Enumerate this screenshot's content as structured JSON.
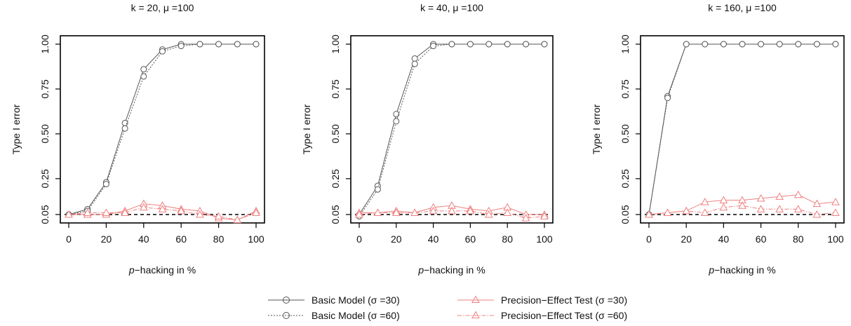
{
  "chart_data": [
    {
      "type": "line",
      "title": "k = 20, μ =100",
      "xlabel": "p−hacking in %",
      "ylabel": "Type I error",
      "x": [
        0,
        10,
        20,
        30,
        40,
        50,
        60,
        70,
        80,
        90,
        100
      ],
      "xticks": [
        "0",
        "20",
        "40",
        "60",
        "80",
        "100"
      ],
      "yticks": [
        "0.05",
        "0.25",
        "0.50",
        "0.75",
        "1.00"
      ],
      "xlim": [
        0,
        100
      ],
      "ylim": [
        0.05,
        1.0
      ],
      "reference_line": 0.05,
      "series": [
        {
          "name": "Basic Model (σ =30)",
          "values": [
            0.05,
            0.08,
            0.23,
            0.56,
            0.86,
            0.97,
            1.0,
            1.0,
            1.0,
            1.0,
            1.0
          ]
        },
        {
          "name": "Basic Model (σ =60)",
          "values": [
            0.05,
            0.07,
            0.22,
            0.53,
            0.82,
            0.96,
            0.99,
            1.0,
            1.0,
            1.0,
            1.0
          ]
        },
        {
          "name": "Precision−Effect Test (σ =30)",
          "values": [
            0.05,
            0.05,
            0.05,
            0.07,
            0.11,
            0.1,
            0.08,
            0.07,
            0.03,
            0.02,
            0.07
          ]
        },
        {
          "name": "Precision−Effect Test (σ =60)",
          "values": [
            0.05,
            0.06,
            0.06,
            0.06,
            0.09,
            0.08,
            0.07,
            0.05,
            0.04,
            0.02,
            0.06
          ]
        }
      ]
    },
    {
      "type": "line",
      "title": "k = 40, μ =100",
      "xlabel": "p−hacking in %",
      "ylabel": "Type I error",
      "x": [
        0,
        10,
        20,
        30,
        40,
        50,
        60,
        70,
        80,
        90,
        100
      ],
      "xticks": [
        "0",
        "20",
        "40",
        "60",
        "80",
        "100"
      ],
      "yticks": [
        "0.05",
        "0.25",
        "0.50",
        "0.75",
        "1.00"
      ],
      "xlim": [
        0,
        100
      ],
      "ylim": [
        0.05,
        1.0
      ],
      "reference_line": 0.05,
      "series": [
        {
          "name": "Basic Model (σ =30)",
          "values": [
            0.05,
            0.21,
            0.61,
            0.92,
            1.0,
            1.0,
            1.0,
            1.0,
            1.0,
            1.0,
            1.0
          ]
        },
        {
          "name": "Basic Model (σ =60)",
          "values": [
            0.04,
            0.19,
            0.57,
            0.89,
            0.99,
            1.0,
            1.0,
            1.0,
            1.0,
            1.0,
            1.0
          ]
        },
        {
          "name": "Precision−Effect Test (σ =30)",
          "values": [
            0.06,
            0.06,
            0.07,
            0.06,
            0.09,
            0.1,
            0.08,
            0.07,
            0.09,
            0.05,
            0.05
          ]
        },
        {
          "name": "Precision−Effect Test (σ =60)",
          "values": [
            0.05,
            0.06,
            0.06,
            0.06,
            0.07,
            0.07,
            0.07,
            0.05,
            0.06,
            0.03,
            0.04
          ]
        }
      ]
    },
    {
      "type": "line",
      "title": "k = 160, μ =100",
      "xlabel": "p−hacking in %",
      "ylabel": "Type I error",
      "x": [
        0,
        10,
        20,
        30,
        40,
        50,
        60,
        70,
        80,
        90,
        100
      ],
      "xticks": [
        "0",
        "20",
        "40",
        "60",
        "80",
        "100"
      ],
      "yticks": [
        "0.05",
        "0.25",
        "0.50",
        "0.75",
        "1.00"
      ],
      "xlim": [
        0,
        100
      ],
      "ylim": [
        0.05,
        1.0
      ],
      "reference_line": 0.05,
      "series": [
        {
          "name": "Basic Model (σ =30)",
          "values": [
            0.05,
            0.71,
            1.0,
            1.0,
            1.0,
            1.0,
            1.0,
            1.0,
            1.0,
            1.0,
            1.0
          ]
        },
        {
          "name": "Basic Model (σ =60)",
          "values": [
            0.05,
            0.7,
            1.0,
            1.0,
            1.0,
            1.0,
            1.0,
            1.0,
            1.0,
            1.0,
            1.0
          ]
        },
        {
          "name": "Precision−Effect Test (σ =30)",
          "values": [
            0.05,
            0.06,
            0.07,
            0.12,
            0.13,
            0.13,
            0.14,
            0.15,
            0.16,
            0.11,
            0.12
          ]
        },
        {
          "name": "Precision−Effect Test (σ =60)",
          "values": [
            0.05,
            0.06,
            0.07,
            0.06,
            0.09,
            0.1,
            0.08,
            0.08,
            0.08,
            0.05,
            0.06
          ]
        }
      ]
    }
  ],
  "legend": {
    "items": [
      {
        "label": "Basic Model (σ =30)",
        "marker": "circle",
        "dash": "solid",
        "color": "#555555"
      },
      {
        "label": "Basic Model (σ =60)",
        "marker": "circle",
        "dash": "dotted",
        "color": "#555555"
      },
      {
        "label": "Precision−Effect Test (σ =30)",
        "marker": "triangle",
        "dash": "solid",
        "color": "#f08080"
      },
      {
        "label": "Precision−Effect Test (σ =60)",
        "marker": "triangle",
        "dash": "dashdot",
        "color": "#f08080"
      }
    ]
  },
  "colors": {
    "basic": "#555555",
    "pet": "#f08080",
    "reference": "#000000"
  }
}
